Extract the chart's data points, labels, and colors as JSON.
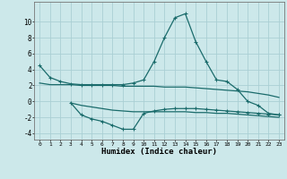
{
  "xlabel": "Humidex (Indice chaleur)",
  "bg_color": "#cce8ea",
  "grid_color": "#aacfd4",
  "line_color": "#1a6b6b",
  "line1_x": [
    0,
    1,
    2,
    3,
    4,
    5,
    6,
    7,
    8,
    9,
    10,
    11,
    12,
    13,
    14,
    15,
    16,
    17,
    18,
    19,
    20,
    21,
    22,
    23
  ],
  "line1_y": [
    4.5,
    3.0,
    2.5,
    2.2,
    2.1,
    2.1,
    2.1,
    2.1,
    2.1,
    2.3,
    2.7,
    5.0,
    8.0,
    10.5,
    11.0,
    7.5,
    5.0,
    2.7,
    2.5,
    1.5,
    0.0,
    -0.5,
    -1.5,
    -1.7
  ],
  "line2_x": [
    3,
    4,
    5,
    6,
    7,
    8,
    9,
    10,
    11,
    12,
    13,
    14,
    15,
    16,
    17,
    18,
    19,
    20,
    21,
    22,
    23
  ],
  "line2_y": [
    -0.2,
    -1.7,
    -2.2,
    -2.5,
    -3.0,
    -3.5,
    -3.5,
    -1.5,
    -1.2,
    -1.0,
    -0.9,
    -0.9,
    -0.9,
    -1.0,
    -1.1,
    -1.2,
    -1.3,
    -1.4,
    -1.5,
    -1.6,
    -1.7
  ],
  "line3_x": [
    0,
    1,
    2,
    3,
    4,
    5,
    6,
    7,
    8,
    9,
    10,
    11,
    12,
    13,
    14,
    15,
    16,
    17,
    18,
    19,
    20,
    21,
    22,
    23
  ],
  "line3_y": [
    2.3,
    2.1,
    2.1,
    2.1,
    2.0,
    2.0,
    2.0,
    2.0,
    1.9,
    1.9,
    1.9,
    1.9,
    1.8,
    1.8,
    1.8,
    1.7,
    1.6,
    1.5,
    1.4,
    1.3,
    1.2,
    1.0,
    0.8,
    0.5
  ],
  "line4_x": [
    3,
    4,
    5,
    6,
    7,
    8,
    9,
    10,
    11,
    12,
    13,
    14,
    15,
    16,
    17,
    18,
    19,
    20,
    21,
    22,
    23
  ],
  "line4_y": [
    -0.2,
    -0.5,
    -0.7,
    -0.9,
    -1.1,
    -1.2,
    -1.3,
    -1.3,
    -1.3,
    -1.3,
    -1.3,
    -1.3,
    -1.4,
    -1.4,
    -1.5,
    -1.5,
    -1.6,
    -1.7,
    -1.8,
    -1.9,
    -2.0
  ],
  "ylim": [
    -4.8,
    12.5
  ],
  "xlim": [
    -0.5,
    23.5
  ],
  "yticks": [
    -4,
    -2,
    0,
    2,
    4,
    6,
    8,
    10
  ],
  "xticks": [
    0,
    1,
    2,
    3,
    4,
    5,
    6,
    7,
    8,
    9,
    10,
    11,
    12,
    13,
    14,
    15,
    16,
    17,
    18,
    19,
    20,
    21,
    22,
    23
  ]
}
